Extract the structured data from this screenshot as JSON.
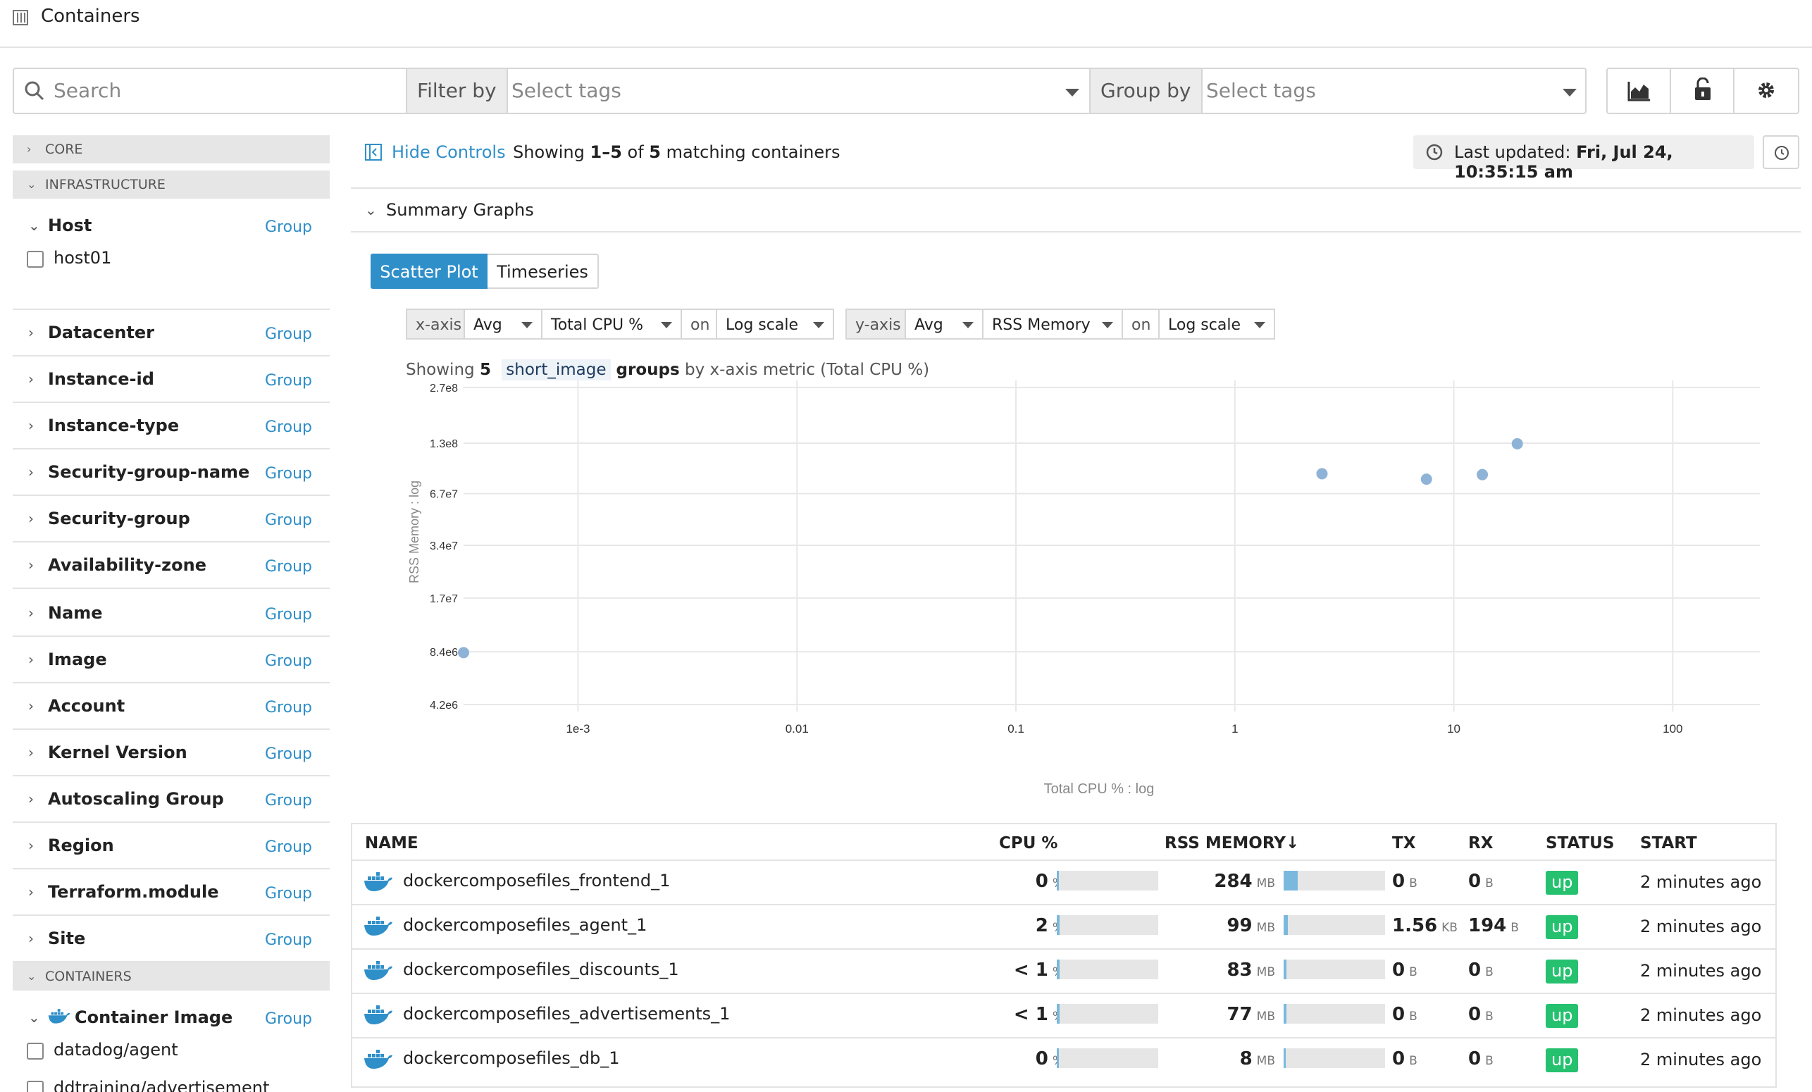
{
  "page": {
    "title": "Containers"
  },
  "search": {
    "placeholder": "Search"
  },
  "filter": {
    "label": "Filter by",
    "placeholder": "Select tags"
  },
  "group": {
    "label": "Group by",
    "placeholder": "Select tags"
  },
  "toolbar": {
    "icons": [
      "chart-area-icon",
      "lock-icon",
      "gear-icon"
    ]
  },
  "sidebar": {
    "core_label": "CORE",
    "infra_label": "INFRASTRUCTURE",
    "containers_label": "CONTAINERS",
    "group_link": "Group",
    "host": {
      "label": "Host",
      "items": [
        "host01"
      ]
    },
    "facets": [
      "Datacenter",
      "Instance-id",
      "Instance-type",
      "Security-group-name",
      "Security-group",
      "Availability-zone",
      "Name",
      "Image",
      "Account",
      "Kernel Version",
      "Autoscaling Group",
      "Region",
      "Terraform.module",
      "Site"
    ],
    "container_image": {
      "label": "Container Image",
      "items": [
        "datadog/agent",
        "ddtraining/advertisement"
      ]
    }
  },
  "controls": {
    "hide_label": "Hide Controls",
    "showing_prefix": "Showing ",
    "showing_range": "1–5",
    "showing_of": " of ",
    "showing_total": "5",
    "showing_suffix": " matching containers",
    "last_updated_label": "Last updated: ",
    "last_updated_value": "Fri, Jul 24, 10:35:15 am"
  },
  "summary": {
    "label": "Summary Graphs",
    "tabs": [
      "Scatter Plot",
      "Timeseries"
    ],
    "active_tab": "Scatter Plot",
    "xaxis": {
      "label": "x-axis",
      "agg": "Avg",
      "metric": "Total CPU %",
      "on": "on",
      "scale": "Log scale"
    },
    "yaxis": {
      "label": "y-axis",
      "agg": "Avg",
      "metric": "RSS Memory",
      "on": "on",
      "scale": "Log scale"
    },
    "showing_a": "Showing ",
    "showing_n": "5",
    "showing_tag": "short_image",
    "showing_groups": "groups",
    "showing_by": " by x-axis metric (Total CPU %)"
  },
  "chart_data": {
    "type": "scatter",
    "x_scale": "log",
    "y_scale": "log",
    "xlabel": "Total CPU % : log",
    "ylabel": "RSS Memory : log",
    "x_ticks": [
      0.001,
      0.01,
      0.1,
      1,
      10,
      100
    ],
    "x_tick_labels": [
      "1e-3",
      "0.01",
      "0.1",
      "1",
      "10",
      "100"
    ],
    "y_ticks": [
      4200000,
      8400000,
      17000000,
      34000000,
      67000000,
      130000000,
      270000000
    ],
    "y_tick_labels": [
      "4.2e6",
      "8.4e6",
      "1.7e7",
      "3.4e7",
      "6.7e7",
      "1.3e8",
      "2.7e8"
    ],
    "xlim": [
      0.0003,
      250
    ],
    "ylim": [
      4200000,
      270000000
    ],
    "grid": true,
    "color": "#8fb3d6",
    "points": [
      {
        "x": 2.5,
        "y": 87000000
      },
      {
        "x": 7.5,
        "y": 81000000
      },
      {
        "x": 13.5,
        "y": 86000000
      },
      {
        "x": 19.5,
        "y": 129000000
      },
      {
        "x": 0.0003,
        "y": 8300000
      }
    ]
  },
  "table": {
    "headers": {
      "name": "NAME",
      "cpu": "CPU %",
      "rss": "RSS MEMORY↓",
      "tx": "TX",
      "rx": "RX",
      "status": "STATUS",
      "start": "START"
    },
    "rows": [
      {
        "name": "dockercomposefiles_frontend_1",
        "cpu": "0",
        "cpu_unit": "%",
        "cpu_fill": 0.0,
        "rss": "284",
        "rss_unit": "MB",
        "rss_fill": 0.14,
        "tx": "0",
        "tx_unit": "B",
        "rx": "0",
        "rx_unit": "B",
        "status": "up",
        "start": "2 minutes ago"
      },
      {
        "name": "dockercomposefiles_agent_1",
        "cpu": "2",
        "cpu_unit": "%",
        "cpu_fill": 0.02,
        "rss": "99",
        "rss_unit": "MB",
        "rss_fill": 0.04,
        "tx": "1.56",
        "tx_unit": "KB",
        "rx": "194",
        "rx_unit": "B",
        "status": "up",
        "start": "2 minutes ago"
      },
      {
        "name": "dockercomposefiles_discounts_1",
        "cpu": "< 1",
        "cpu_unit": "%",
        "cpu_fill": 0.01,
        "rss": "83",
        "rss_unit": "MB",
        "rss_fill": 0.03,
        "tx": "0",
        "tx_unit": "B",
        "rx": "0",
        "rx_unit": "B",
        "status": "up",
        "start": "2 minutes ago"
      },
      {
        "name": "dockercomposefiles_advertisements_1",
        "cpu": "< 1",
        "cpu_unit": "%",
        "cpu_fill": 0.01,
        "rss": "77",
        "rss_unit": "MB",
        "rss_fill": 0.03,
        "tx": "0",
        "tx_unit": "B",
        "rx": "0",
        "rx_unit": "B",
        "status": "up",
        "start": "2 minutes ago"
      },
      {
        "name": "dockercomposefiles_db_1",
        "cpu": "0",
        "cpu_unit": "%",
        "cpu_fill": 0.0,
        "rss": "8",
        "rss_unit": "MB",
        "rss_fill": 0.0,
        "tx": "0",
        "tx_unit": "B",
        "rx": "0",
        "rx_unit": "B",
        "status": "up",
        "start": "2 minutes ago"
      }
    ]
  },
  "colors": {
    "accent": "#2f8fc9",
    "status_up": "#25c16f",
    "point": "#8fb3d6",
    "docker": "#2f8fc9"
  }
}
